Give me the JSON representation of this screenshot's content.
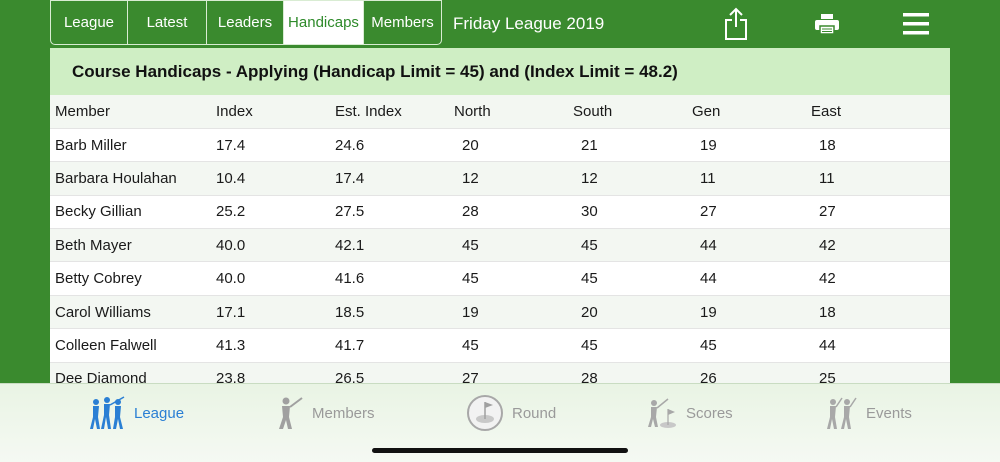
{
  "header": {
    "tabs": [
      {
        "label": "League",
        "active": false
      },
      {
        "label": "Latest",
        "active": false
      },
      {
        "label": "Leaders",
        "active": false
      },
      {
        "label": "Handicaps",
        "active": true
      },
      {
        "label": "Members",
        "active": false
      }
    ],
    "league_title": "Friday League 2019",
    "icons": [
      "share-icon",
      "print-icon",
      "menu-icon"
    ]
  },
  "handicaps": {
    "title": "Course Handicaps - Applying (Handicap Limit = 45) and (Index Limit = 48.2)",
    "columns": [
      "Member",
      "Index",
      "Est. Index",
      "North",
      "South",
      "Gen",
      "East"
    ],
    "rows": [
      [
        "Barb Miller",
        "17.4",
        "24.6",
        "20",
        "21",
        "19",
        "18"
      ],
      [
        "Barbara Houlahan",
        "10.4",
        "17.4",
        "12",
        "12",
        "11",
        "11"
      ],
      [
        "Becky Gillian",
        "25.2",
        "27.5",
        "28",
        "30",
        "27",
        "27"
      ],
      [
        "Beth Mayer",
        "40.0",
        "42.1",
        "45",
        "45",
        "44",
        "42"
      ],
      [
        "Betty Cobrey",
        "40.0",
        "41.6",
        "45",
        "45",
        "44",
        "42"
      ],
      [
        "Carol Williams",
        "17.1",
        "18.5",
        "19",
        "20",
        "19",
        "18"
      ],
      [
        "Colleen Falwell",
        "41.3",
        "41.7",
        "45",
        "45",
        "45",
        "44"
      ],
      [
        "Dee Diamond",
        "23.8",
        "26.5",
        "27",
        "28",
        "26",
        "25"
      ]
    ]
  },
  "bottom_nav": [
    {
      "label": "League",
      "icon": "golfers-icon",
      "active": true
    },
    {
      "label": "Members",
      "icon": "golfer-icon",
      "active": false
    },
    {
      "label": "Round",
      "icon": "golf-hole-icon",
      "active": false
    },
    {
      "label": "Scores",
      "icon": "scores-icon",
      "active": false
    },
    {
      "label": "Events",
      "icon": "events-icon",
      "active": false
    }
  ],
  "colors": {
    "brand_green": "#3a8a2e",
    "title_band": "#cfeec4",
    "active_blue": "#2a7fd4"
  }
}
